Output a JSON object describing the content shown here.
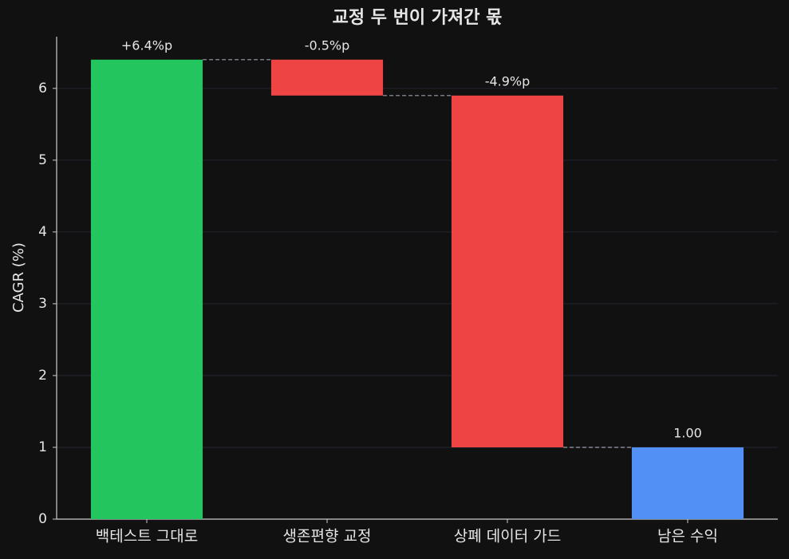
{
  "chart_data": {
    "type": "waterfall",
    "title": "교정 두 번이 가져간 몫",
    "y_label": "CAGR (%)",
    "categories": [
      "백테스트 그대로",
      "생존편향 교정",
      "상폐 데이터 가드",
      "남은 수익"
    ],
    "values": [
      6.4,
      -0.5,
      -4.9,
      1.0
    ],
    "value_labels": [
      "+6.4%p",
      "-0.5%p",
      "-4.9%p",
      "1.00"
    ],
    "measures": [
      "relative",
      "relative",
      "relative",
      "total"
    ],
    "colors": [
      "#22c55e",
      "#ef4444",
      "#ef4444",
      "#5390f5"
    ],
    "ylim": [
      0,
      6.72
    ],
    "yticks": [
      0,
      1,
      2,
      3,
      4,
      5,
      6
    ],
    "grid": true
  }
}
